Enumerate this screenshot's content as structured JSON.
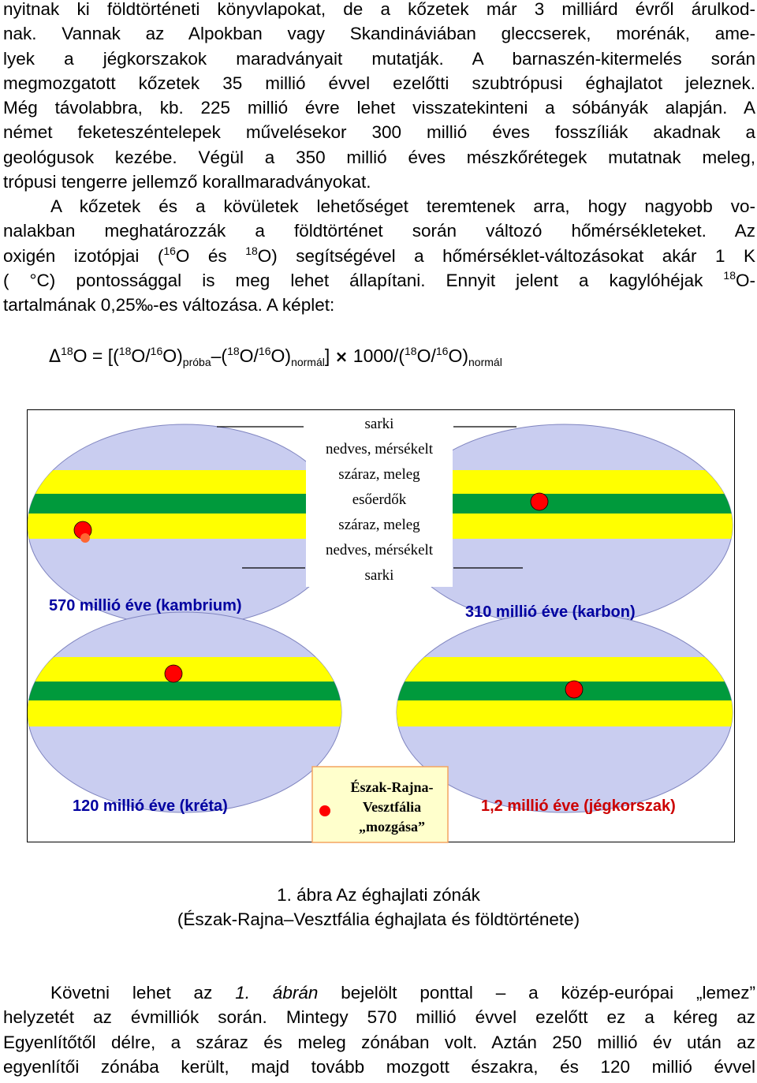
{
  "intro": {
    "lines": [
      "nyitnak ki földtörténeti könyvlapokat, de a kőzetek már 3 milliárd évről árulkod-",
      "nak. Vannak az Alpokban vagy Skandináviában gleccserek, morénák, ame-",
      "lyek a jégkorszakok maradványait mutatják. A barnaszén-kitermelés során",
      "megmozgatott kőzetek 35 millió évvel ezelőtti szubtrópusi éghajlatot jeleznek.",
      "Még távolabbra, kb. 225 millió évre lehet visszatekinteni a sóbányák alapján. A",
      "német feketeszéntelepek művelésekor 300 millió éves fosszíliák akadnak a",
      "geológusok kezébe. Végül a 350 millió éves mészkőrétegek mutatnak meleg,",
      "trópusi tengerre jellemző korallmaradványokat."
    ]
  },
  "para2": {
    "line1": "A kőzetek és a kövületek lehetőséget teremtenek arra, hogy nagyobb vo-",
    "line2": "nalakban meghatározzák a földtörténet során változó hőmérsékleteket. Az",
    "line3_a": "oxigén izotópjai (",
    "sup16": "16",
    "line3_b": "O és ",
    "sup18": "18",
    "line3_c": "O) segítségével a hőmérséklet-változásokat akár 1 K",
    "line4_a": "( °C) pontossággal is meg lehet állapítani. Ennyit jelent a kagylóhéjak ",
    "line4_b": "O-",
    "line5": "tartalmának 0,25‰-es változása. A képlet:"
  },
  "formula": {
    "delta": "Δ",
    "s18": "18",
    "s16": "16",
    "o": "O",
    "eq": " = [(",
    "slash": "O/",
    "close": "O)",
    "proba": "próba",
    "dash": "–(",
    "normal": "normál",
    "bracket": "]",
    "times": "×",
    "thousand": " 1000/("
  },
  "figure": {
    "zones": [
      "sarki",
      "nedves, mérsékelt",
      "száraz, meleg",
      "esőerdők",
      "száraz, meleg",
      "nedves, mérsékelt",
      "sarki"
    ],
    "labels": {
      "kambrium": "570 millió éve (kambrium)",
      "karbon": "310 millió éve (karbon)",
      "kreta": "120 millió éve (kréta)",
      "jegkorszak": "1,2 millió éve (jégkorszak)"
    },
    "legend": [
      "Észak-Rajna-",
      "Vesztfália",
      "„mozgása”"
    ],
    "colors": {
      "ellipse": "#c9cdf0",
      "band": "#ffff00",
      "green_band": "#009a3c",
      "dot": "#ff0000",
      "label": "#0000a0",
      "label_jeg": "#cc0000",
      "legend_bg": "#ffffcc",
      "legend_border": "#f4a460"
    }
  },
  "caption": {
    "line1": "1. ábra Az éghajlati zónák",
    "line2": "(Észak-Rajna–Vesztfália éghajlata és földtörténete)"
  },
  "bottom": {
    "l1_a": "Követni lehet az ",
    "l1_i1": "1. ábrán",
    "l1_b": " bejelölt ponttal – a közép-európai „lemez”",
    "l2": "helyzetét az évmilliók során. Mintegy 570 millió évvel ezelőtt ez a kéreg az",
    "l3": "Egyenlítőtől délre, a száraz és meleg zónában volt. Aztán 250 millió év után az",
    "l4": "egyenlítői zónába került, majd tovább mozgott északra, és 120 millió évvel"
  }
}
